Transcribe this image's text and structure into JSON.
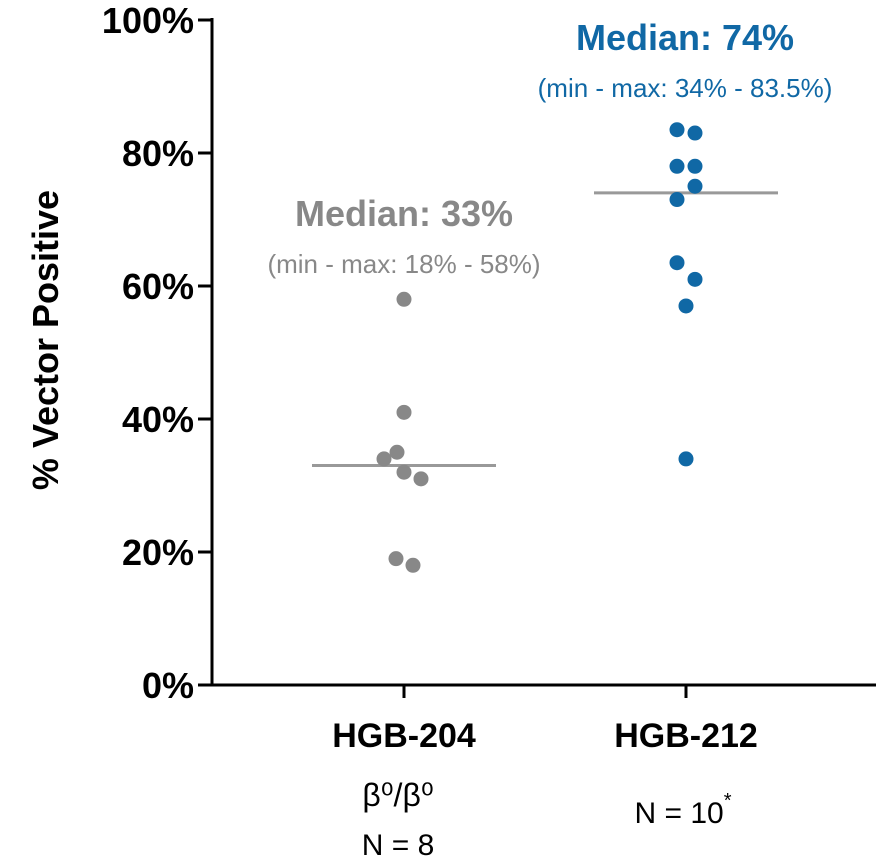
{
  "chart_data": {
    "type": "scatter",
    "ylabel": "% Vector Positive",
    "ylim": [
      0,
      100
    ],
    "yticks": [
      "0%",
      "20%",
      "40%",
      "60%",
      "80%",
      "100%"
    ],
    "categories": [
      "HGB-204",
      "HGB-212"
    ],
    "groups": [
      {
        "name": "HGB-204",
        "genotype": "β⁰/β⁰",
        "n_label": "N = 8",
        "color": "#888888",
        "median": 33,
        "median_label": "Median: 33%",
        "range_label": "(min - max: 18% - 58%)",
        "values": [
          58,
          41,
          35,
          34,
          32,
          31,
          19,
          18
        ]
      },
      {
        "name": "HGB-212",
        "genotype": "",
        "n_label": "N = 10",
        "n_mark": "*",
        "color": "#1068A5",
        "median": 74,
        "median_label": "Median: 74%",
        "range_label": "(min - max: 34% - 83.5%)",
        "values": [
          83.5,
          83,
          78,
          78,
          75,
          73,
          63.5,
          61,
          57,
          34
        ]
      }
    ]
  }
}
